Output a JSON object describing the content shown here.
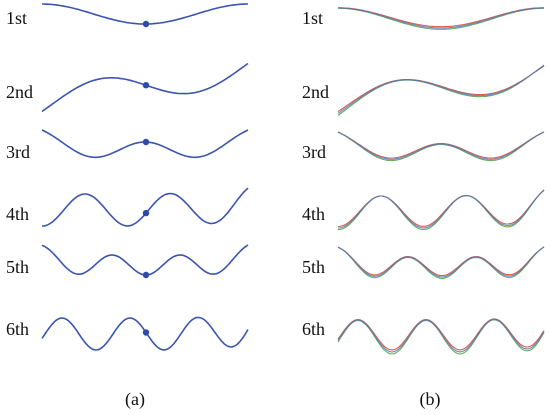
{
  "panels": [
    {
      "caption": "(a)",
      "rows": [
        "1st",
        "2nd",
        "3rd",
        "4th",
        "5th",
        "6th"
      ]
    },
    {
      "caption": "(b)",
      "rows": [
        "1st",
        "2nd",
        "3rd",
        "4th",
        "5th",
        "6th"
      ]
    }
  ]
}
